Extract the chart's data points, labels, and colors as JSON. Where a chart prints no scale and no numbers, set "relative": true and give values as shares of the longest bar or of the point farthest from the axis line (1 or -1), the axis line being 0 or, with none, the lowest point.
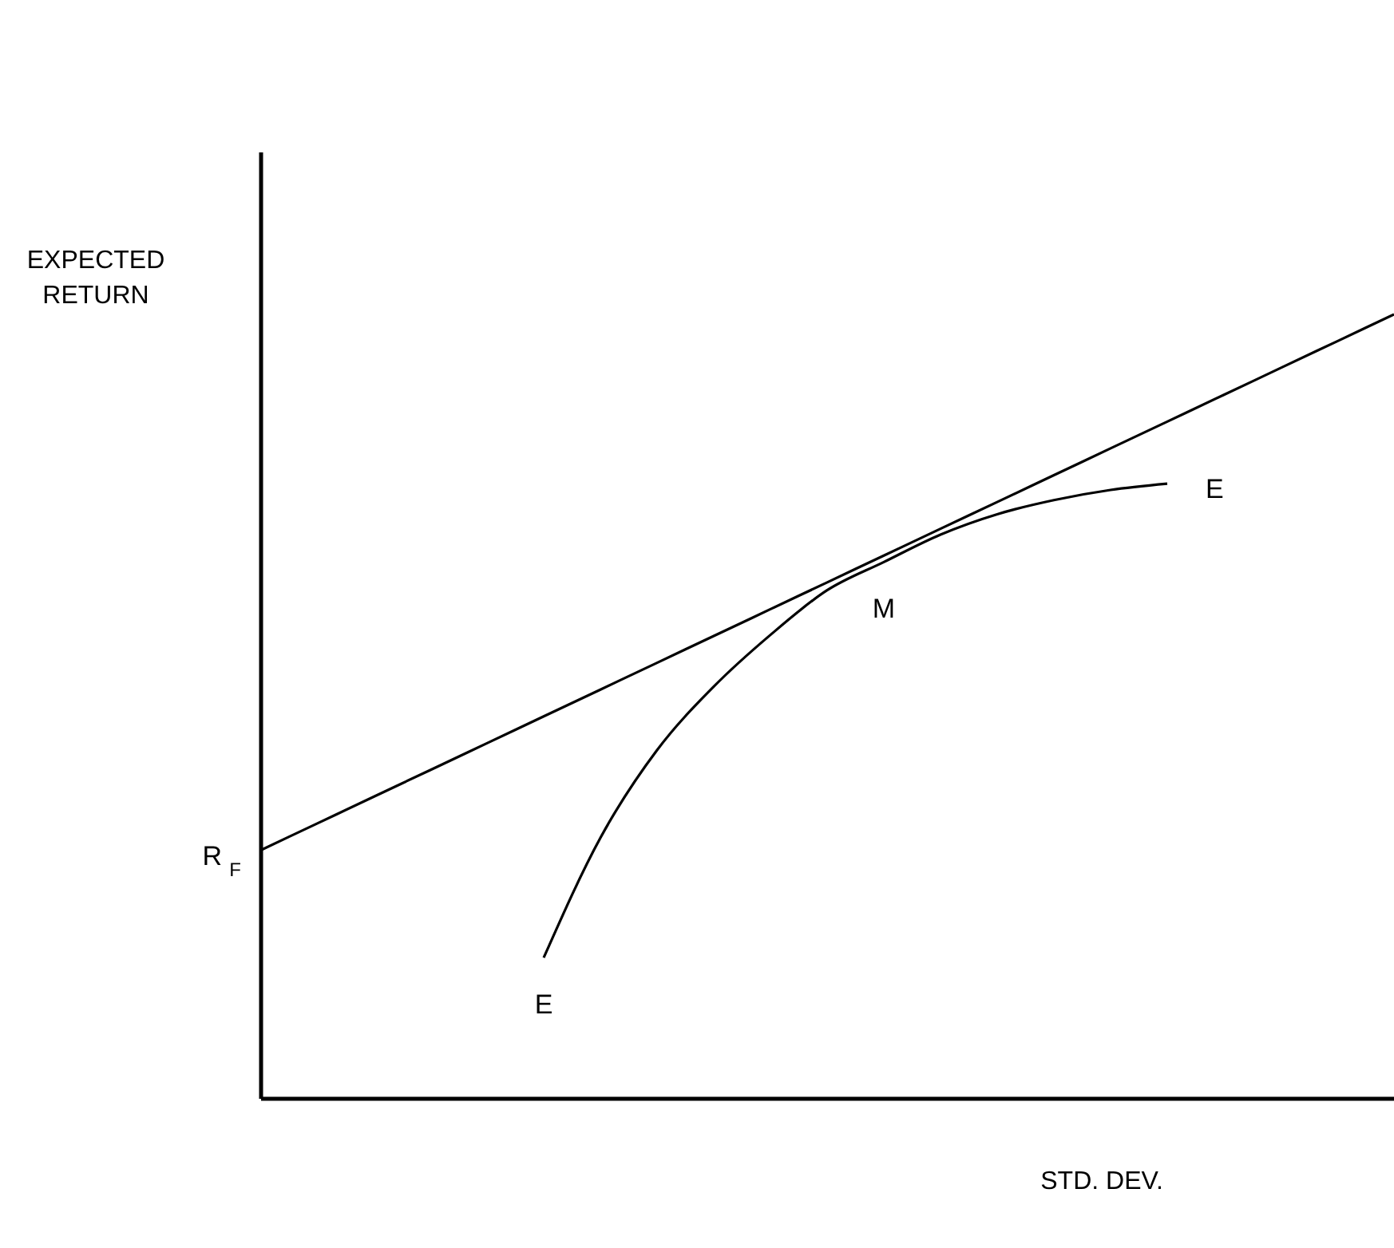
{
  "chart_data": {
    "type": "line",
    "relative": true,
    "xlabel": "STD. DEV.",
    "ylabel": "EXPECTED RETURN",
    "categories": [
      null,
      null,
      null,
      null,
      null,
      null,
      null,
      null,
      null,
      null,
      null,
      null,
      null,
      null,
      null,
      null,
      null,
      null,
      null,
      null,
      null
    ],
    "series": [
      {
        "color": "#000000",
        "values": [
          0.316,
          0.3502,
          0.3844,
          0.4186,
          0.4528,
          0.487,
          0.5212,
          0.5554,
          0.5896,
          0.6238,
          0.658,
          0.6922,
          0.7264,
          0.7606,
          0.7948,
          0.829,
          0.8632,
          0.8974,
          0.9316,
          0.9658,
          1.0
        ]
      },
      {
        "color": "#000000",
        "values": [
          null,
          null,
          null,
          null,
          null,
          0.179,
          0.332,
          0.444,
          0.525,
          0.591,
          0.648,
          0.684,
          0.719,
          0.745,
          0.763,
          0.776,
          0.784,
          null,
          null,
          null,
          null
        ]
      }
    ],
    "annotations": [
      "R$_{F}$",
      {
        "text": "E",
        "y": 0.179
      },
      {
        "text": "M",
        "y": 0.684
      },
      "E"
    ]
  }
}
